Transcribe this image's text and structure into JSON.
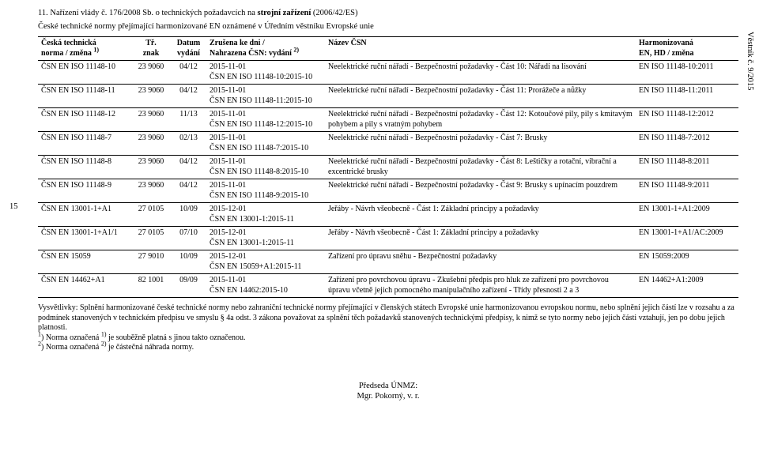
{
  "side_page": "15",
  "side_right": "Věstník č. 9/2015",
  "heading_prefix": "11. Nařízení vlády č. 176/2008 Sb. o technických požadavcích na ",
  "heading_bold": "strojní zařízení",
  "heading_suffix": " (2006/42/ES)",
  "subheading": "České technické normy přejímající harmonizované EN oznámené v Úředním věstníku Evropské unie",
  "table": {
    "head": {
      "c1a": "Česká technická",
      "c1b": "norma / změna ",
      "c2a": "Tř.",
      "c2b": "znak",
      "c3a": "Datum",
      "c3b": "vydání",
      "c4a": "Zrušena ke dni /",
      "c4b": "Nahrazena ČSN: vydání ",
      "c5a": "Název ČSN",
      "c5b": "",
      "c6a": "Harmonizovaná",
      "c6b": "EN, HD / změna",
      "sup1": "1)",
      "sup2": "2)"
    },
    "rows": [
      {
        "norma": "ČSN EN ISO 11148-10",
        "znak": "23 9060",
        "vyd": "04/12",
        "zrus1": "2015-11-01",
        "zrus2": "ČSN EN ISO 11148-10:2015-10",
        "nazev": "Neelektrické ruční nářadí - Bezpečnostní požadavky - Část 10: Nářadí na lisování",
        "harm": "EN ISO 11148-10:2011"
      },
      {
        "norma": "ČSN EN ISO 11148-11",
        "znak": "23 9060",
        "vyd": "04/12",
        "zrus1": "2015-11-01",
        "zrus2": "ČSN EN ISO 11148-11:2015-10",
        "nazev": "Neelektrické ruční nářadí - Bezpečnostní požadavky - Část 11: Prorážeče a nůžky",
        "harm": "EN ISO 11148-11:2011"
      },
      {
        "norma": "ČSN EN ISO 11148-12",
        "znak": "23 9060",
        "vyd": "11/13",
        "zrus1": "2015-11-01",
        "zrus2": "ČSN EN ISO 11148-12:2015-10",
        "nazev": "Neelektrické ruční nářadí - Bezpečnostní požadavky - Část 12: Kotoučové pily, pily s kmitavým pohybem a pily s vratným pohybem",
        "harm": "EN ISO 11148-12:2012"
      },
      {
        "norma": "ČSN EN ISO 11148-7",
        "znak": "23 9060",
        "vyd": "02/13",
        "zrus1": "2015-11-01",
        "zrus2": "ČSN EN ISO 11148-7:2015-10",
        "nazev": "Neelektrické ruční nářadí - Bezpečnostní požadavky - Část 7: Brusky",
        "harm": "EN ISO 11148-7:2012"
      },
      {
        "norma": "ČSN EN ISO 11148-8",
        "znak": "23 9060",
        "vyd": "04/12",
        "zrus1": "2015-11-01",
        "zrus2": "ČSN EN ISO 11148-8:2015-10",
        "nazev": "Neelektrické ruční nářadí - Bezpečnostní požadavky - Část 8: Leštičky a rotační, vibrační a excentrické brusky",
        "harm": "EN ISO 11148-8:2011"
      },
      {
        "norma": "ČSN EN ISO 11148-9",
        "znak": "23 9060",
        "vyd": "04/12",
        "zrus1": "2015-11-01",
        "zrus2": "ČSN EN ISO 11148-9:2015-10",
        "nazev": "Neelektrické ruční nářadí - Bezpečnostní požadavky - Část 9: Brusky s upínacím pouzdrem",
        "harm": "EN ISO 11148-9:2011"
      },
      {
        "norma": "ČSN EN 13001-1+A1",
        "znak": "27 0105",
        "vyd": "10/09",
        "zrus1": "2015-12-01",
        "zrus2": "ČSN EN 13001-1:2015-11",
        "nazev": "Jeřáby - Návrh všeobecně - Část 1: Základní principy a požadavky",
        "harm": "EN 13001-1+A1:2009"
      },
      {
        "norma": "ČSN EN 13001-1+A1/1",
        "znak": "27 0105",
        "vyd": "07/10",
        "zrus1": "2015-12-01",
        "zrus2": "ČSN EN 13001-1:2015-11",
        "nazev": "Jeřáby - Návrh všeobecně - Část 1: Základní principy a požadavky",
        "harm": "EN 13001-1+A1/AC:2009"
      },
      {
        "norma": "ČSN EN 15059",
        "znak": "27 9010",
        "vyd": "10/09",
        "zrus1": "2015-12-01",
        "zrus2": "ČSN EN 15059+A1:2015-11",
        "nazev": "Zařízení pro úpravu sněhu - Bezpečnostní požadavky",
        "harm": "EN 15059:2009"
      },
      {
        "norma": "ČSN EN 14462+A1",
        "znak": "82 1001",
        "vyd": "09/09",
        "zrus1": "2015-11-01",
        "zrus2": "ČSN EN 14462:2015-10",
        "nazev": "Zařízení pro povrchovou úpravu - Zkušební předpis pro hluk ze zařízení pro povrchovou úpravu včetně jejich pomocného manipulačního zařízení - Třídy přesnosti 2 a 3",
        "harm": "EN 14462+A1:2009"
      }
    ]
  },
  "footnotes": {
    "p1": "Vysvětlivky: Splnění harmonizované české technické normy nebo zahraniční technické normy přejímající v členských státech Evropské unie harmonizovanou evropskou normu, nebo splnění jejich částí lze v rozsahu a za podmínek stanovených v technickém předpisu ve smyslu § 4a odst. 3 zákona považovat za splnění těch požadavků stanovených technickými předpisy, k nimž se tyto normy nebo jejich části vztahují, jen po dobu jejich platnosti.",
    "p2_marker": "1",
    "p2_paren": ")",
    "p2_text_pre": " Norma označená ",
    "p2_sup": "1)",
    "p2_text_post": " je souběžně platná s jinou takto označenou.",
    "p3_marker": "2",
    "p3_paren": ")",
    "p3_text_pre": " Norma označená ",
    "p3_sup": "2)",
    "p3_text_post": " je částečná náhrada normy."
  },
  "signature": {
    "l1": "Předseda ÚNMZ:",
    "l2": "Mgr. Pokorný, v. r."
  }
}
